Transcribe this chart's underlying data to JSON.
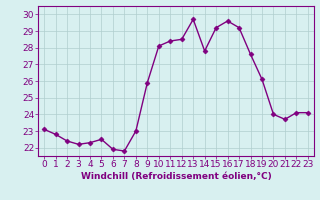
{
  "x": [
    0,
    1,
    2,
    3,
    4,
    5,
    6,
    7,
    8,
    9,
    10,
    11,
    12,
    13,
    14,
    15,
    16,
    17,
    18,
    19,
    20,
    21,
    22,
    23
  ],
  "y": [
    23.1,
    22.8,
    22.4,
    22.2,
    22.3,
    22.5,
    21.9,
    21.8,
    23.0,
    25.9,
    28.1,
    28.4,
    28.5,
    29.7,
    27.8,
    29.2,
    29.6,
    29.2,
    27.6,
    26.1,
    24.0,
    23.7,
    24.1,
    24.1
  ],
  "line_color": "#800080",
  "marker": "D",
  "marker_size": 2.5,
  "bg_color": "#d8f0f0",
  "grid_color": "#b0cece",
  "xlabel": "Windchill (Refroidissement éolien,°C)",
  "ylim": [
    21.5,
    30.5
  ],
  "yticks": [
    22,
    23,
    24,
    25,
    26,
    27,
    28,
    29,
    30
  ],
  "xticks": [
    0,
    1,
    2,
    3,
    4,
    5,
    6,
    7,
    8,
    9,
    10,
    11,
    12,
    13,
    14,
    15,
    16,
    17,
    18,
    19,
    20,
    21,
    22,
    23
  ],
  "line_color_hex": "#800080",
  "axis_color": "#800080",
  "tick_color": "#800080",
  "xlabel_color": "#800080",
  "xlabel_fontsize": 6.5,
  "tick_fontsize": 6.5,
  "linewidth": 1.0
}
